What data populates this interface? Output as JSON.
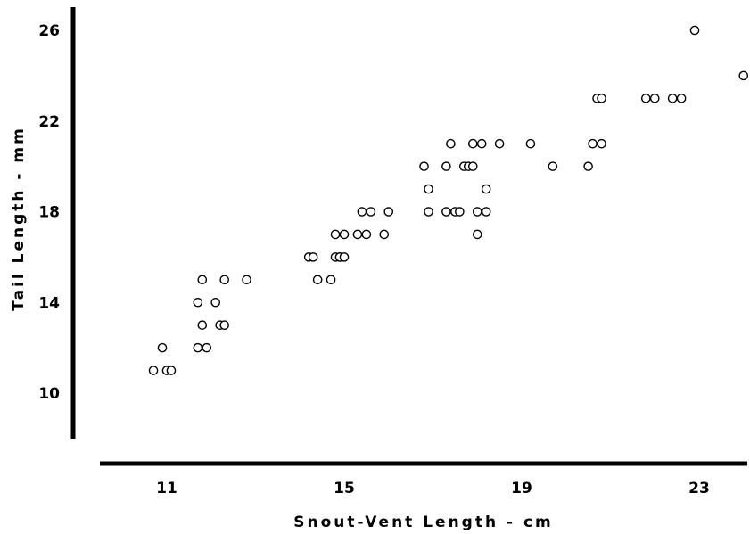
{
  "chart_data": {
    "type": "scatter",
    "xlabel": "Snout-Vent Length - cm",
    "ylabel": "Tail Length - mm",
    "xlim": [
      8.5,
      25.5
    ],
    "ylim": [
      8,
      27
    ],
    "x_ticks": [
      11,
      15,
      19,
      23
    ],
    "y_ticks": [
      10,
      14,
      18,
      22,
      26
    ],
    "grid": false,
    "points": [
      {
        "x": 10.7,
        "y": 11
      },
      {
        "x": 10.9,
        "y": 12
      },
      {
        "x": 11.0,
        "y": 11
      },
      {
        "x": 11.1,
        "y": 11
      },
      {
        "x": 11.7,
        "y": 14
      },
      {
        "x": 11.7,
        "y": 12
      },
      {
        "x": 11.8,
        "y": 13
      },
      {
        "x": 11.8,
        "y": 15
      },
      {
        "x": 11.9,
        "y": 12
      },
      {
        "x": 12.1,
        "y": 14
      },
      {
        "x": 12.2,
        "y": 13
      },
      {
        "x": 12.3,
        "y": 13
      },
      {
        "x": 12.3,
        "y": 15
      },
      {
        "x": 12.8,
        "y": 15
      },
      {
        "x": 14.2,
        "y": 16
      },
      {
        "x": 14.3,
        "y": 16
      },
      {
        "x": 14.4,
        "y": 15
      },
      {
        "x": 14.7,
        "y": 15
      },
      {
        "x": 14.8,
        "y": 17
      },
      {
        "x": 14.8,
        "y": 16
      },
      {
        "x": 14.9,
        "y": 16
      },
      {
        "x": 14.9,
        "y": 16
      },
      {
        "x": 15.0,
        "y": 16
      },
      {
        "x": 15.0,
        "y": 17
      },
      {
        "x": 15.3,
        "y": 17
      },
      {
        "x": 15.4,
        "y": 18
      },
      {
        "x": 15.5,
        "y": 17
      },
      {
        "x": 15.6,
        "y": 18
      },
      {
        "x": 15.9,
        "y": 17
      },
      {
        "x": 16.0,
        "y": 18
      },
      {
        "x": 16.8,
        "y": 20
      },
      {
        "x": 16.9,
        "y": 19
      },
      {
        "x": 16.9,
        "y": 18
      },
      {
        "x": 17.3,
        "y": 18
      },
      {
        "x": 17.3,
        "y": 20
      },
      {
        "x": 17.4,
        "y": 21
      },
      {
        "x": 17.5,
        "y": 18
      },
      {
        "x": 17.6,
        "y": 18
      },
      {
        "x": 17.7,
        "y": 20
      },
      {
        "x": 17.8,
        "y": 20
      },
      {
        "x": 17.9,
        "y": 21
      },
      {
        "x": 17.9,
        "y": 20
      },
      {
        "x": 18.0,
        "y": 18
      },
      {
        "x": 18.0,
        "y": 17
      },
      {
        "x": 18.1,
        "y": 21
      },
      {
        "x": 18.2,
        "y": 19
      },
      {
        "x": 18.2,
        "y": 18
      },
      {
        "x": 18.5,
        "y": 21
      },
      {
        "x": 19.2,
        "y": 21
      },
      {
        "x": 19.7,
        "y": 20
      },
      {
        "x": 20.5,
        "y": 20
      },
      {
        "x": 20.6,
        "y": 21
      },
      {
        "x": 20.7,
        "y": 23
      },
      {
        "x": 20.8,
        "y": 21
      },
      {
        "x": 20.8,
        "y": 23
      },
      {
        "x": 21.8,
        "y": 23
      },
      {
        "x": 22.0,
        "y": 23
      },
      {
        "x": 22.4,
        "y": 23
      },
      {
        "x": 22.6,
        "y": 23
      },
      {
        "x": 22.9,
        "y": 26
      },
      {
        "x": 24.0,
        "y": 24
      }
    ]
  }
}
